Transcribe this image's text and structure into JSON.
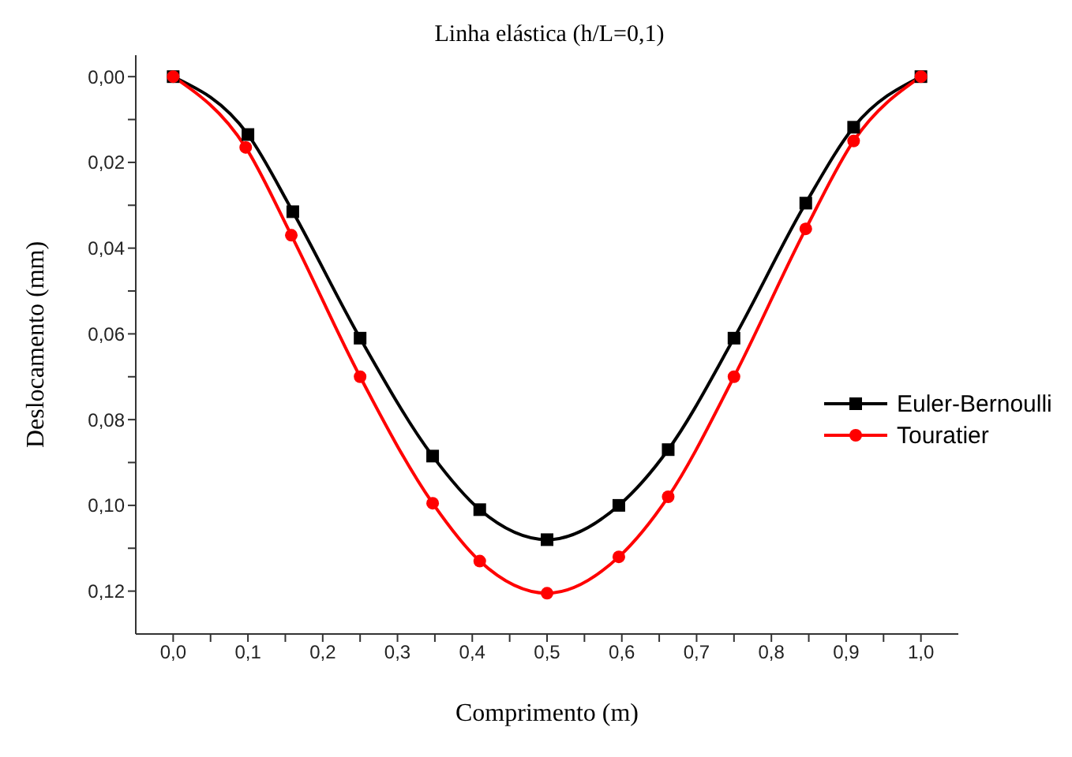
{
  "chart_data": {
    "type": "line",
    "title": "Linha elástica (h/L=0,1)",
    "xlabel": "Comprimento (m)",
    "ylabel": "Deslocamento (mm)",
    "xlim": [
      -0.05,
      1.05
    ],
    "xticks": [
      {
        "value": 0,
        "label": "0,0"
      },
      {
        "value": 0.05,
        "label": null
      },
      {
        "value": 0.1,
        "label": "0,1"
      },
      {
        "value": 0.15,
        "label": null
      },
      {
        "value": 0.2,
        "label": "0,2"
      },
      {
        "value": 0.25,
        "label": null
      },
      {
        "value": 0.3,
        "label": "0,3"
      },
      {
        "value": 0.35,
        "label": null
      },
      {
        "value": 0.4,
        "label": "0,4"
      },
      {
        "value": 0.45,
        "label": null
      },
      {
        "value": 0.5,
        "label": "0,5"
      },
      {
        "value": 0.55,
        "label": null
      },
      {
        "value": 0.6,
        "label": "0,6"
      },
      {
        "value": 0.65,
        "label": null
      },
      {
        "value": 0.7,
        "label": "0,7"
      },
      {
        "value": 0.75,
        "label": null
      },
      {
        "value": 0.8,
        "label": "0,8"
      },
      {
        "value": 0.85,
        "label": null
      },
      {
        "value": 0.9,
        "label": "0,9"
      },
      {
        "value": 0.95,
        "label": null
      },
      {
        "value": 1,
        "label": "1,0"
      }
    ],
    "ylim": [
      0.13,
      -0.005
    ],
    "yticks": [
      {
        "value": 0,
        "label": "0,00"
      },
      {
        "value": 0.01,
        "label": null
      },
      {
        "value": 0.02,
        "label": "0,02"
      },
      {
        "value": 0.03,
        "label": null
      },
      {
        "value": 0.04,
        "label": "0,04"
      },
      {
        "value": 0.05,
        "label": null
      },
      {
        "value": 0.06,
        "label": "0,06"
      },
      {
        "value": 0.07,
        "label": null
      },
      {
        "value": 0.08,
        "label": "0,08"
      },
      {
        "value": 0.09,
        "label": null
      },
      {
        "value": 0.1,
        "label": "0,10"
      },
      {
        "value": 0.11,
        "label": null
      },
      {
        "value": 0.12,
        "label": "0,12"
      }
    ],
    "grid": false,
    "legend": "right",
    "line_style": "solid",
    "series": [
      {
        "name": "Euler-Bernoulli",
        "color": "#000000",
        "marker": "square",
        "x": [
          0,
          0.1,
          0.16,
          0.25,
          0.347,
          0.41,
          0.5,
          0.596,
          0.662,
          0.75,
          0.846,
          0.91,
          1
        ],
        "values": [
          0,
          0.0135,
          0.0315,
          0.061,
          0.0885,
          0.101,
          0.108,
          0.1,
          0.087,
          0.061,
          0.0295,
          0.0118,
          0
        ]
      },
      {
        "name": "Touratier",
        "color": "#ff0000",
        "marker": "circle",
        "x": [
          0,
          0.097,
          0.158,
          0.25,
          0.347,
          0.41,
          0.5,
          0.596,
          0.662,
          0.75,
          0.846,
          0.91,
          1
        ],
        "values": [
          0,
          0.0165,
          0.037,
          0.07,
          0.0995,
          0.113,
          0.1205,
          0.112,
          0.098,
          0.07,
          0.0355,
          0.015,
          0
        ]
      }
    ]
  }
}
